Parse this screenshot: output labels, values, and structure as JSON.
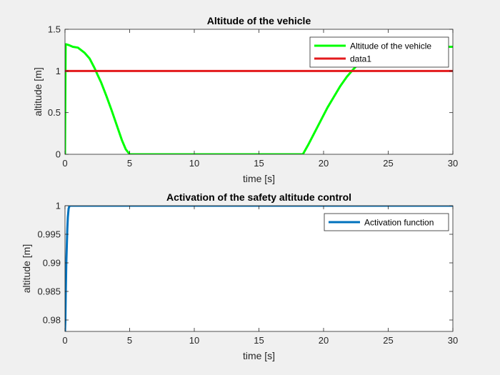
{
  "chart_data": [
    {
      "type": "line",
      "title": "Altitude of the vehicle",
      "xlabel": "time [s]",
      "ylabel": "altitude [m]",
      "xlim": [
        0,
        30
      ],
      "ylim": [
        0,
        1.5
      ],
      "xticks": [
        0,
        5,
        10,
        15,
        20,
        25,
        30
      ],
      "yticks": [
        0,
        0.5,
        1,
        1.5
      ],
      "xtick_labels": [
        "0",
        "5",
        "10",
        "15",
        "20",
        "25",
        "30"
      ],
      "ytick_labels": [
        "0",
        "0.5",
        "1",
        "1.5"
      ],
      "grid": false,
      "legend_position": "top-right",
      "series": [
        {
          "name": "Altitude of the vehicle",
          "color": "#00ff00",
          "x": [
            0,
            0.05,
            0.1,
            0.3,
            0.6,
            1.0,
            1.5,
            1.9,
            2.3,
            2.5,
            2.8,
            3.2,
            3.6,
            4.0,
            4.4,
            4.7,
            4.95,
            5.0,
            10,
            15,
            18.4,
            18.8,
            19.3,
            19.8,
            20.3,
            20.8,
            21.3,
            21.8,
            22.3,
            22.8,
            23.3,
            23.6,
            30
          ],
          "y": [
            0,
            1.32,
            1.32,
            1.31,
            1.29,
            1.28,
            1.22,
            1.15,
            1.03,
            0.96,
            0.86,
            0.7,
            0.53,
            0.35,
            0.17,
            0.06,
            0.01,
            0,
            0,
            0,
            0,
            0.11,
            0.26,
            0.41,
            0.56,
            0.69,
            0.82,
            0.93,
            1.02,
            1.1,
            1.17,
            1.29,
            1.29
          ]
        },
        {
          "name": "data1",
          "color": "#e31a1c",
          "x": [
            0,
            30
          ],
          "y": [
            1,
            1
          ]
        }
      ]
    },
    {
      "type": "line",
      "title": "Activation of the safety altitude control",
      "xlabel": "time [s]",
      "ylabel": "altitude [m]",
      "xlim": [
        0,
        30
      ],
      "ylim": [
        0.978,
        1
      ],
      "xticks": [
        0,
        5,
        10,
        15,
        20,
        25,
        30
      ],
      "yticks": [
        0.98,
        0.985,
        0.99,
        0.995,
        1
      ],
      "xtick_labels": [
        "0",
        "5",
        "10",
        "15",
        "20",
        "25",
        "30"
      ],
      "ytick_labels": [
        "0.98",
        "0.985",
        "0.99",
        "0.995",
        "1"
      ],
      "grid": false,
      "legend_position": "top-right",
      "series": [
        {
          "name": "Activation function",
          "color": "#0072bd",
          "x": [
            0,
            0.03,
            0.06,
            0.1,
            0.14,
            0.18,
            0.22,
            0.28,
            0.35,
            0.45,
            30
          ],
          "y": [
            0.978,
            0.98,
            0.985,
            0.99,
            0.993,
            0.996,
            0.998,
            0.9995,
            1,
            1,
            1
          ]
        }
      ]
    }
  ]
}
